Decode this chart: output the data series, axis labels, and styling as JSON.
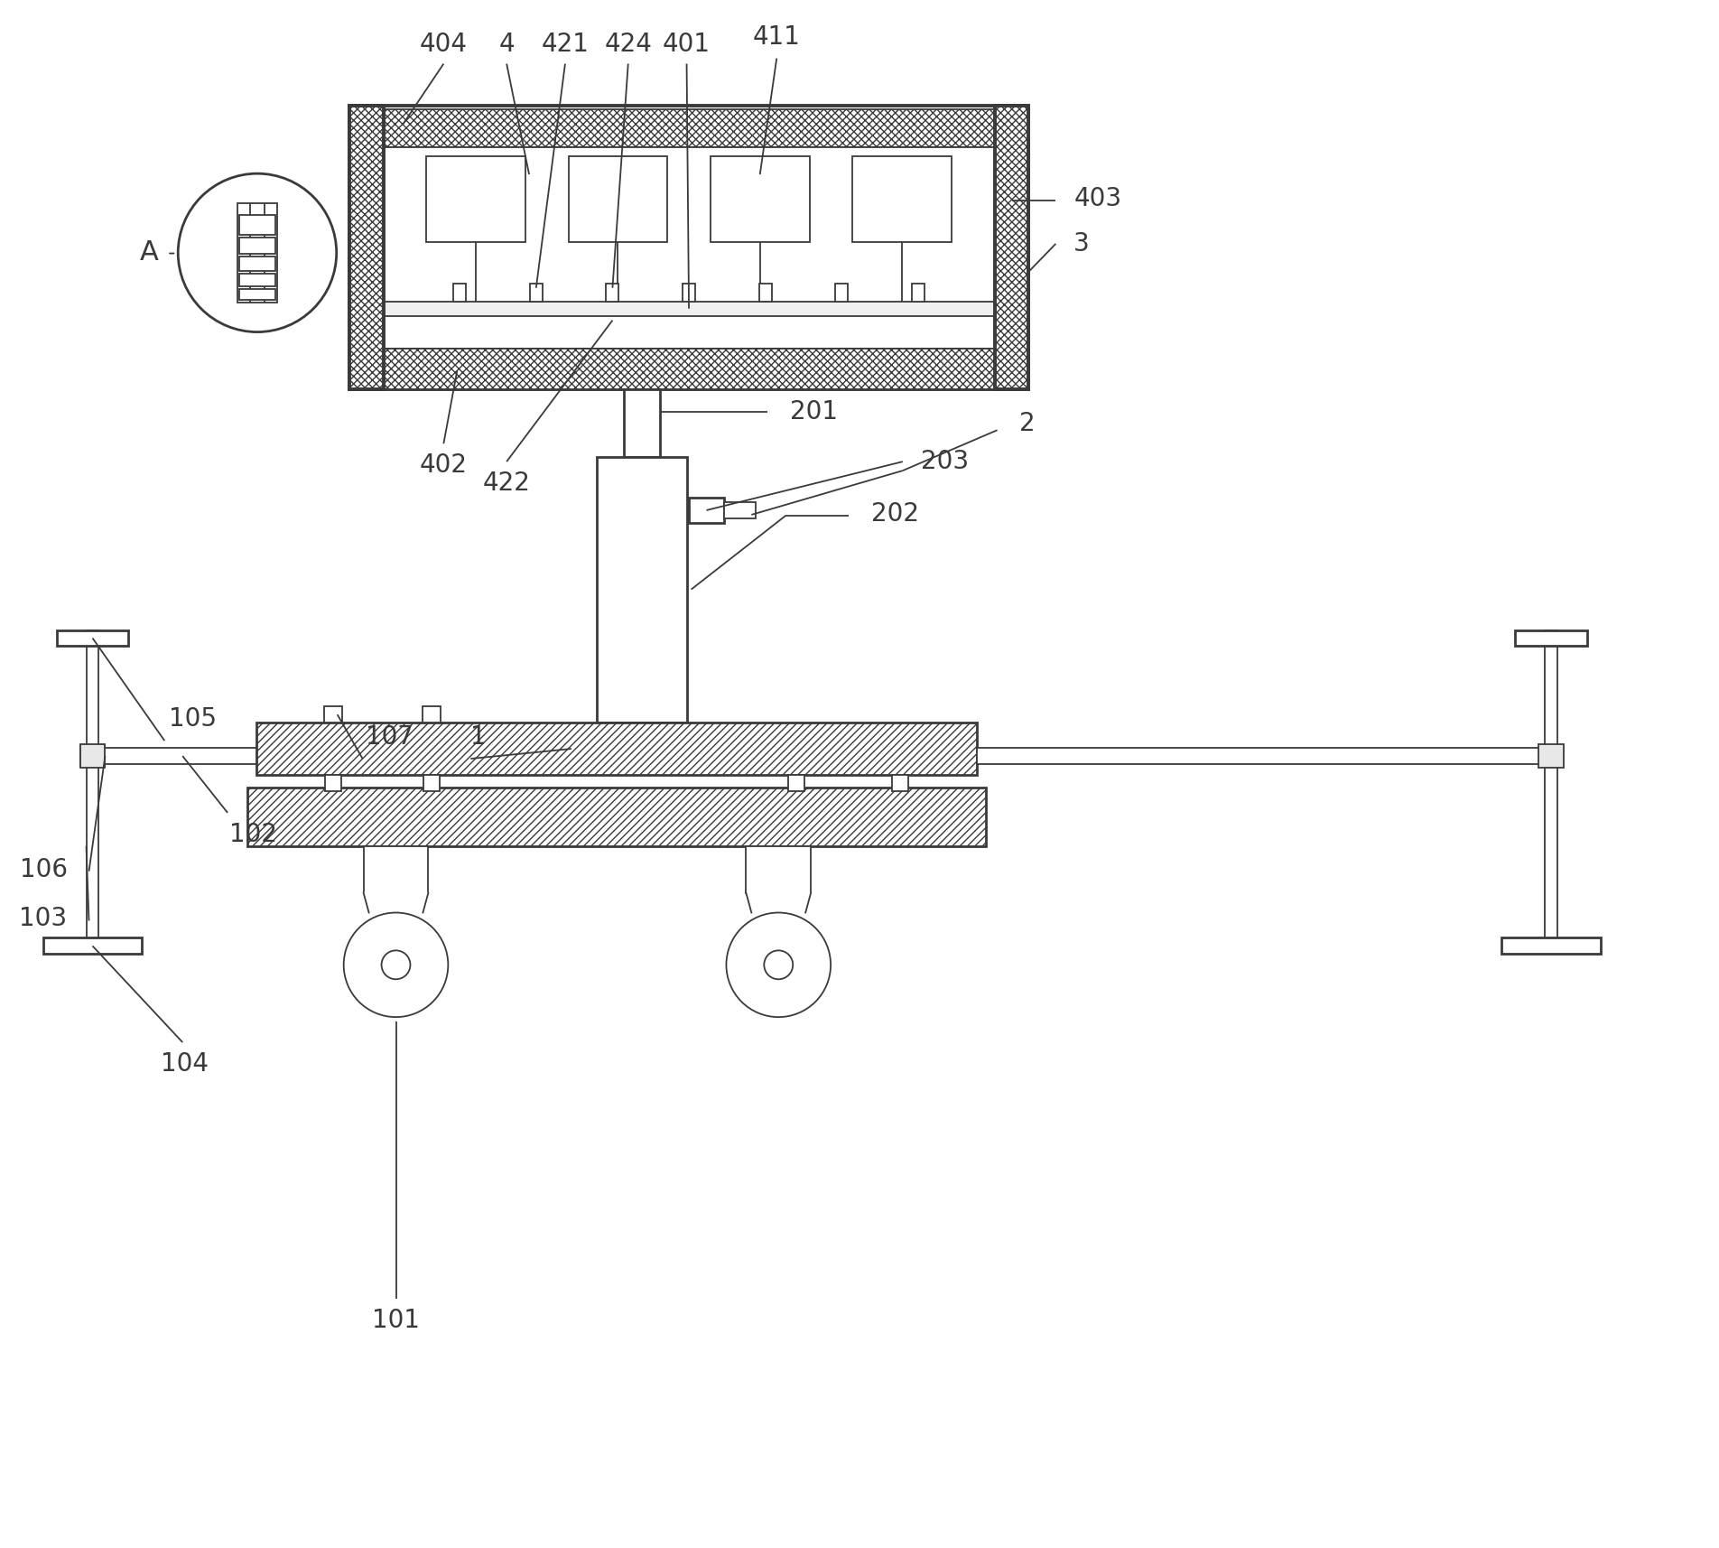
{
  "bg_color": "#ffffff",
  "line_color": "#3a3a3a",
  "fig_width": 19.04,
  "fig_height": 17.14,
  "font_size": 20,
  "lw_main": 2.0,
  "lw_thin": 1.3,
  "lw_thick": 2.8
}
